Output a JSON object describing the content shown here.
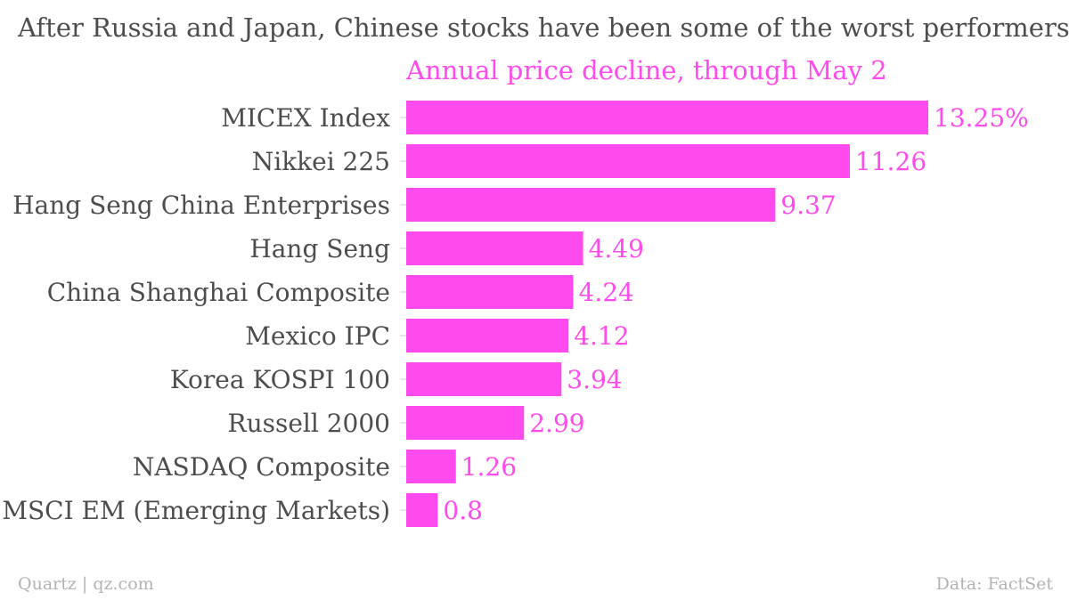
{
  "chart_data": {
    "type": "bar",
    "orientation": "horizontal",
    "title": "After Russia and Japan, Chinese stocks have been some of the worst performers...",
    "subtitle": "Annual price decline, through May 2",
    "categories": [
      "MICEX Index",
      "Nikkei 225",
      "Hang Seng China Enterprises",
      "Hang Seng",
      "China Shanghai Composite",
      "Mexico IPC",
      "Korea KOSPI 100",
      "Russell 2000",
      "NASDAQ Composite",
      "MSCI EM (Emerging Markets)"
    ],
    "values": [
      13.25,
      11.26,
      9.37,
      4.49,
      4.24,
      4.12,
      3.94,
      2.99,
      1.26,
      0.8
    ],
    "value_labels": [
      "13.25%",
      "11.26",
      "9.37",
      "4.49",
      "4.24",
      "4.12",
      "3.94",
      "2.99",
      "1.26",
      "0.8"
    ],
    "xlim": [
      0,
      13.25
    ],
    "grid": false,
    "bar_color": "#ff4bed",
    "label_color": "#ff4bed",
    "text_color": "#4d4d4d"
  },
  "footer": {
    "source_left": "Quartz | qz.com",
    "source_right": "Data: FactSet"
  }
}
